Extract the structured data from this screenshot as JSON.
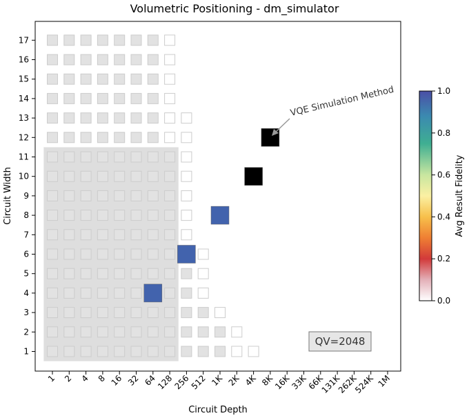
{
  "chart_data": {
    "type": "heatmap",
    "title": "Volumetric Positioning - dm_simulator",
    "xlabel": "Circuit Depth",
    "ylabel": "Circuit Width",
    "x_ticks": [
      "1",
      "2",
      "4",
      "8",
      "16",
      "32",
      "64",
      "128",
      "256",
      "512",
      "1K",
      "2K",
      "4K",
      "8K",
      "16K",
      "33K",
      "66K",
      "131K",
      "262K",
      "524K",
      "1M"
    ],
    "y_ticks": [
      1,
      2,
      3,
      4,
      5,
      6,
      7,
      8,
      9,
      10,
      11,
      12,
      13,
      14,
      15,
      16,
      17
    ],
    "colorbar": {
      "label": "Avg Result Fidelity",
      "range": [
        0.0,
        1.0
      ],
      "ticks": [
        "0.0",
        "0.2",
        "0.4",
        "0.6",
        "0.8",
        "1.0"
      ]
    },
    "qv_label": "QV=2048",
    "qv_region": {
      "max_width": 11,
      "max_depth": "128"
    },
    "annotation": {
      "text": "VQE Simulation Method",
      "points_to": {
        "depth": "8K",
        "width": 12
      }
    },
    "grid_columns_per_width": [
      {
        "width": 1,
        "filled_through": "1K",
        "outline_through": "4K"
      },
      {
        "width": 2,
        "filled_through": "1K",
        "outline_through": "2K"
      },
      {
        "width": 3,
        "filled_through": "512",
        "outline_through": "1K"
      },
      {
        "width": 4,
        "filled_through": "256",
        "outline_through": "512"
      },
      {
        "width": 5,
        "filled_through": "256",
        "outline_through": "512"
      },
      {
        "width": 6,
        "filled_through": "128",
        "outline_through": "512"
      },
      {
        "width": 7,
        "filled_through": "128",
        "outline_through": "256"
      },
      {
        "width": 8,
        "filled_through": "128",
        "outline_through": "256"
      },
      {
        "width": 9,
        "filled_through": "128",
        "outline_through": "256"
      },
      {
        "width": 10,
        "filled_through": "128",
        "outline_through": "256"
      },
      {
        "width": 11,
        "filled_through": "128",
        "outline_through": "256"
      },
      {
        "width": 12,
        "filled_through": "64",
        "outline_through": "256"
      },
      {
        "width": 13,
        "filled_through": "64",
        "outline_through": "256"
      },
      {
        "width": 14,
        "filled_through": "64",
        "outline_through": "128"
      },
      {
        "width": 15,
        "filled_through": "64",
        "outline_through": "128"
      },
      {
        "width": 16,
        "filled_through": "64",
        "outline_through": "128"
      },
      {
        "width": 17,
        "filled_through": "64",
        "outline_through": "128"
      }
    ],
    "points": [
      {
        "depth": "64",
        "width": 4,
        "fidelity": 1.0
      },
      {
        "depth": "256",
        "width": 6,
        "fidelity": 1.0
      },
      {
        "depth": "1K",
        "width": 8,
        "fidelity": 1.0
      },
      {
        "depth": "4K",
        "width": 10,
        "fidelity": null,
        "color": "#000000"
      },
      {
        "depth": "8K",
        "width": 12,
        "fidelity": null,
        "color": "#000000"
      }
    ],
    "colors": {
      "grid_fill": "#e2e2e2",
      "grid_stroke": "#cccccc",
      "qv_region": "#dedede",
      "point_high": "#4263ad",
      "point_fail": "#000000"
    }
  }
}
